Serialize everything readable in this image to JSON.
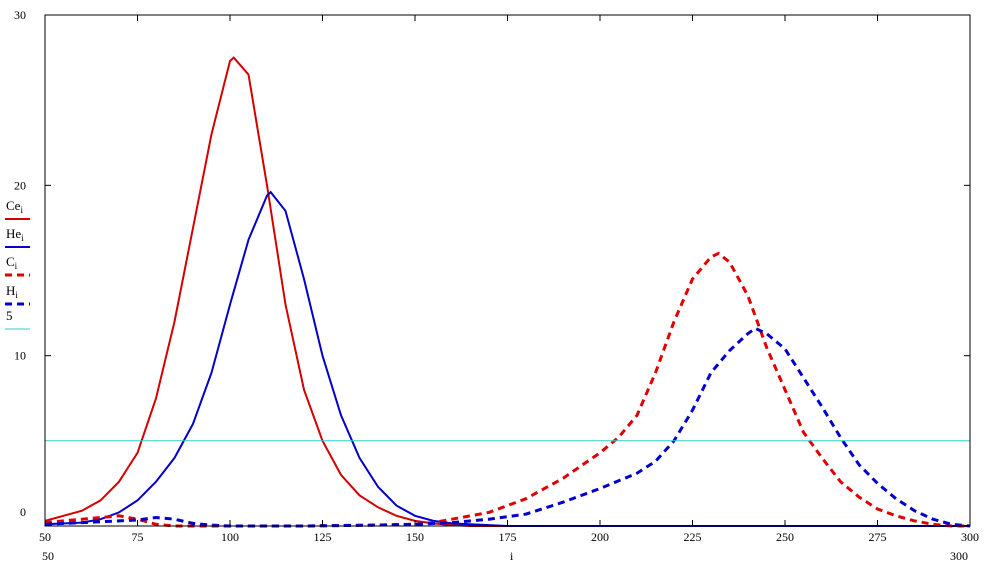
{
  "chart_data": {
    "type": "line",
    "title": "",
    "xlabel": "i",
    "ylabel": "",
    "xlim": [
      50,
      300
    ],
    "ylim": [
      0,
      30
    ],
    "xrange_labels": {
      "min": "50",
      "max": "300"
    },
    "xticks": [
      50,
      75,
      100,
      125,
      150,
      175,
      200,
      225,
      250,
      275,
      300
    ],
    "yticks": [
      0,
      10,
      20,
      30
    ],
    "grid": false,
    "legend_position": "left",
    "series": [
      {
        "name": "Ce",
        "sub": "i",
        "color": "#d40000",
        "style": "solid",
        "x": [
          50,
          55,
          60,
          65,
          70,
          75,
          80,
          85,
          90,
          95,
          100,
          101,
          105,
          110,
          115,
          120,
          125,
          130,
          135,
          140,
          145,
          150,
          155,
          160,
          165,
          300
        ],
        "y": [
          0.3,
          0.6,
          0.9,
          1.5,
          2.6,
          4.3,
          7.5,
          12,
          17.5,
          23,
          27.3,
          27.5,
          26.5,
          20,
          13,
          8,
          5,
          3,
          1.8,
          1.1,
          0.6,
          0.3,
          0.15,
          0.05,
          0,
          0
        ]
      },
      {
        "name": "He",
        "sub": "i",
        "color": "#0000c8",
        "style": "solid",
        "x": [
          50,
          60,
          65,
          70,
          75,
          80,
          85,
          90,
          95,
          100,
          105,
          110,
          111,
          115,
          120,
          125,
          130,
          135,
          140,
          145,
          150,
          155,
          160,
          170,
          175,
          300
        ],
        "y": [
          0.1,
          0.2,
          0.4,
          0.8,
          1.5,
          2.6,
          4,
          6,
          9,
          13,
          16.8,
          19.4,
          19.6,
          18.5,
          14.5,
          10,
          6.5,
          4,
          2.3,
          1.2,
          0.6,
          0.3,
          0.15,
          0.05,
          0,
          0
        ]
      },
      {
        "name": "C",
        "sub": "i",
        "color": "#e00000",
        "style": "dashed",
        "x": [
          50,
          55,
          60,
          65,
          70,
          75,
          80,
          85,
          100,
          120,
          140,
          150,
          155,
          160,
          170,
          180,
          190,
          200,
          205,
          210,
          215,
          220,
          225,
          230,
          232,
          235,
          240,
          245,
          250,
          255,
          260,
          265,
          270,
          275,
          280,
          285,
          290,
          295,
          300
        ],
        "y": [
          0.2,
          0.3,
          0.4,
          0.5,
          0.6,
          0.4,
          0.1,
          0,
          0,
          0,
          0.05,
          0.1,
          0.2,
          0.4,
          0.8,
          1.6,
          2.8,
          4.3,
          5.2,
          6.5,
          9,
          12,
          14.5,
          15.8,
          16,
          15.5,
          13.5,
          10.5,
          8,
          5.5,
          4,
          2.6,
          1.7,
          1,
          0.6,
          0.3,
          0.1,
          0,
          0
        ]
      },
      {
        "name": "H",
        "sub": "i",
        "color": "#0000d0",
        "style": "dashed",
        "x": [
          50,
          60,
          70,
          75,
          80,
          85,
          90,
          95,
          100,
          120,
          140,
          150,
          160,
          170,
          180,
          190,
          200,
          210,
          215,
          220,
          225,
          230,
          235,
          240,
          242,
          245,
          250,
          255,
          260,
          265,
          270,
          275,
          280,
          285,
          290,
          295,
          300
        ],
        "y": [
          0.1,
          0.2,
          0.3,
          0.35,
          0.5,
          0.4,
          0.15,
          0.05,
          0,
          0,
          0.05,
          0.1,
          0.2,
          0.4,
          0.7,
          1.4,
          2.2,
          3.1,
          3.8,
          5,
          6.8,
          9,
          10.3,
          11.3,
          11.6,
          11.3,
          10.4,
          8.7,
          7,
          5.2,
          3.6,
          2.5,
          1.6,
          0.9,
          0.4,
          0.1,
          0
        ]
      },
      {
        "name": "5",
        "sub": "",
        "color": "#33cccc",
        "style": "solid",
        "x": [
          50,
          300
        ],
        "y": [
          5,
          5
        ]
      }
    ]
  }
}
